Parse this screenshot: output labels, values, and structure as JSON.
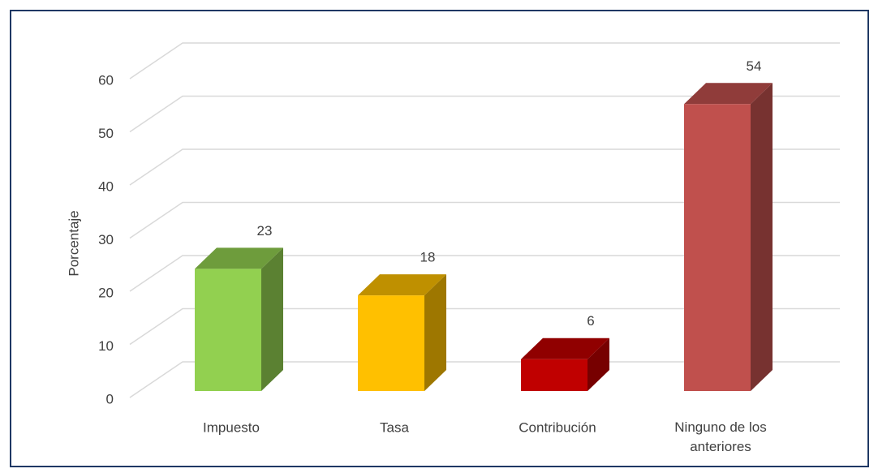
{
  "chart_data": {
    "type": "bar3d",
    "y_axis_label": "Porcentaje",
    "categories": [
      "Impuesto",
      "Tasa",
      "Contribución",
      "Ninguno de los anteriores"
    ],
    "values": [
      23,
      18,
      6,
      54
    ],
    "colors": [
      "#92d050",
      "#ffc000",
      "#c00000",
      "#c0504d"
    ],
    "ylim": [
      0,
      60
    ],
    "yticks": [
      0,
      10,
      20,
      30,
      40,
      50,
      60
    ],
    "grid": true
  }
}
